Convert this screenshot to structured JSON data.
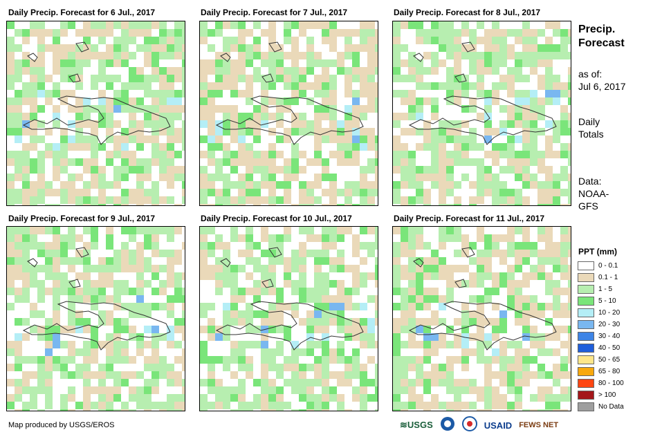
{
  "panels": [
    {
      "title": "Daily Precip. Forecast for 6 Jul., 2017"
    },
    {
      "title": "Daily Precip. Forecast for 7 Jul., 2017"
    },
    {
      "title": "Daily Precip. Forecast for 8 Jul., 2017"
    },
    {
      "title": "Daily Precip. Forecast for 9 Jul., 2017"
    },
    {
      "title": "Daily Precip. Forecast for 10 Jul., 2017"
    },
    {
      "title": "Daily Precip. Forecast for 11 Jul., 2017"
    }
  ],
  "side": {
    "title_line1": "Precip.",
    "title_line2": "Forecast",
    "asof_label": "as of:",
    "asof_date": "Jul 6, 2017",
    "totals_line1": "Daily",
    "totals_line2": "Totals",
    "data_line1": "Data:",
    "data_line2": "NOAA-",
    "data_line3": "GFS"
  },
  "legend": {
    "title": "PPT (mm)",
    "items": [
      {
        "label": "0 - 0.1",
        "color": "#ffffff"
      },
      {
        "label": "0.1 - 1",
        "color": "#ead9b9"
      },
      {
        "label": "1 - 5",
        "color": "#b7eeb0"
      },
      {
        "label": "5 - 10",
        "color": "#7ae57a"
      },
      {
        "label": "10 - 20",
        "color": "#b4eef6"
      },
      {
        "label": "20 - 30",
        "color": "#79b7f0"
      },
      {
        "label": "30 - 40",
        "color": "#3e84e6"
      },
      {
        "label": "40 - 50",
        "color": "#1f5edb"
      },
      {
        "label": "50 - 65",
        "color": "#fde68a"
      },
      {
        "label": "65 - 80",
        "color": "#f8a80d"
      },
      {
        "label": "80 - 100",
        "color": "#ff4612"
      },
      {
        "label": "> 100",
        "color": "#a4161a"
      },
      {
        "label": "No Data",
        "color": "#9e9e9e"
      }
    ]
  },
  "credit": "Map produced by USGS/EROS",
  "logos": {
    "usgs": "USGS",
    "usaid": "USAID",
    "fewsnet": "FEWS NET"
  }
}
